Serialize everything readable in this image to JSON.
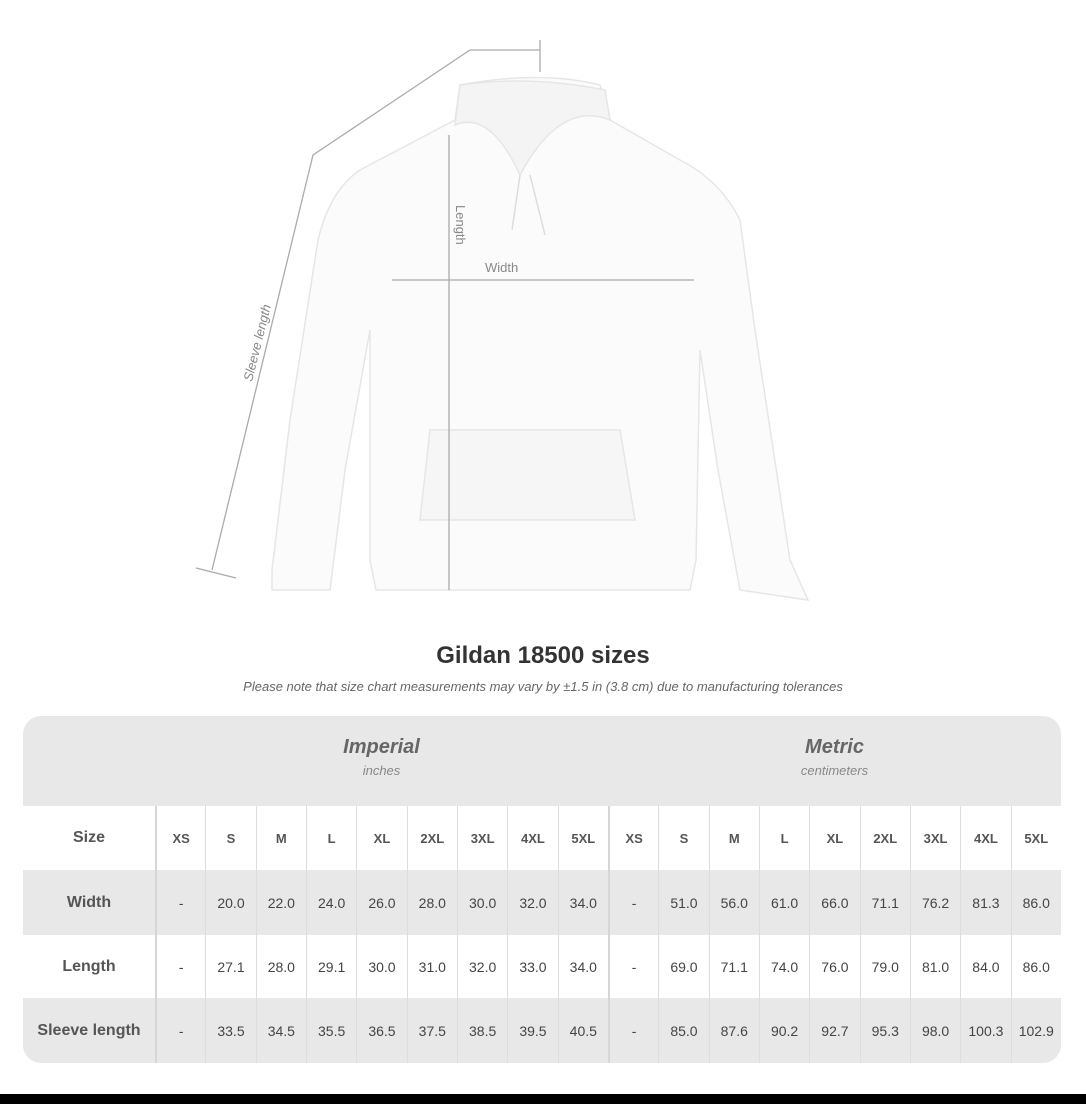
{
  "diagram": {
    "labels": {
      "sleeve": "Sleeve length",
      "length": "Length",
      "width": "Width"
    }
  },
  "title": "Gildan 18500 sizes",
  "subtitle": "Please note that size chart measurements may vary by ±1.5 in (3.8 cm) due to manufacturing tolerances",
  "imperial": {
    "system": "Imperial",
    "unit": "inches"
  },
  "metric": {
    "system": "Metric",
    "unit": "centimeters"
  },
  "size_label": "Size",
  "sizes": [
    "XS",
    "S",
    "M",
    "L",
    "XL",
    "2XL",
    "3XL",
    "4XL",
    "5XL",
    "XS",
    "S",
    "M",
    "L",
    "XL",
    "2XL",
    "3XL",
    "4XL",
    "5XL"
  ],
  "rows": [
    {
      "label": "Width",
      "values": [
        "-",
        "20.0",
        "22.0",
        "24.0",
        "26.0",
        "28.0",
        "30.0",
        "32.0",
        "34.0",
        "-",
        "51.0",
        "56.0",
        "61.0",
        "66.0",
        "71.1",
        "76.2",
        "81.3",
        "86.0"
      ]
    },
    {
      "label": "Length",
      "values": [
        "-",
        "27.1",
        "28.0",
        "29.1",
        "30.0",
        "31.0",
        "32.0",
        "33.0",
        "34.0",
        "-",
        "69.0",
        "71.1",
        "74.0",
        "76.0",
        "79.0",
        "81.0",
        "84.0",
        "86.0"
      ]
    },
    {
      "label": "Sleeve length",
      "values": [
        "-",
        "33.5",
        "34.5",
        "35.5",
        "36.5",
        "37.5",
        "38.5",
        "39.5",
        "40.5",
        "-",
        "85.0",
        "87.6",
        "90.2",
        "92.7",
        "95.3",
        "98.0",
        "100.3",
        "102.9"
      ]
    }
  ]
}
